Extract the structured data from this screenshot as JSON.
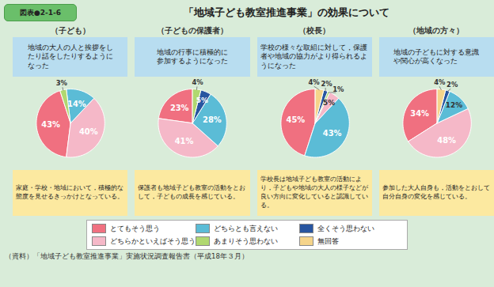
{
  "title": "「地域子ども教室推進事業」の効果について",
  "annotations": [
    "図表●2-1-6",
    "（資料）「地域子ども教室推進事業」実施状況調査報告書（平成18年３月）"
  ],
  "legend_items": [
    {
      "name": "とてもそう思う",
      "color": "#f07080"
    },
    {
      "name": "どちらとも言えない",
      "color": "#5bbcd6"
    },
    {
      "name": "全くそう思わない",
      "color": "#2855a0"
    },
    {
      "name": "どちらかといえばそう思う",
      "color": "#f5b8c8"
    },
    {
      "name": "あまりそう思わない",
      "color": "#b0d870"
    },
    {
      "name": "無回答",
      "color": "#f5d48a"
    }
  ],
  "chart_data": [
    {
      "type": "pie",
      "title": "（子ども）",
      "annotations": [
        "地域の大人の人と挨拶をし\nたり話をしたりするように\nなった",
        "家庭・学校・地域において，積極的な態度を見せるきっかけとなっている。"
      ],
      "values": [
        43,
        40,
        14,
        3
      ],
      "value_labels": [
        "43%",
        "40%",
        "14%",
        "3%"
      ],
      "colors": [
        "#f07080",
        "#f5b8c8",
        "#5bbcd6",
        "#b0d870"
      ],
      "data_labels": true
    },
    {
      "type": "pie",
      "title": "（子どもの保護者）",
      "annotations": [
        "地域の行事に積極的に\n参加するようになった",
        "保護者も地域子ども教室の活動をとおして，子どもの成長を感じている。"
      ],
      "values": [
        23,
        41,
        28,
        5,
        4
      ],
      "value_labels": [
        "23%",
        "41%",
        "28%",
        "5%",
        "4%"
      ],
      "colors": [
        "#f07080",
        "#f5b8c8",
        "#5bbcd6",
        "#2855a0",
        "#b0d870"
      ],
      "data_labels": true
    },
    {
      "type": "pie",
      "title": "（校長）",
      "annotations": [
        "学校の様々な取組に対して，保護者や地域の協力がより得られるようになった",
        "学校長は地域子ども教室の活動により，子どもや地域の大人の様子などが良い方向に変化していると認識している。"
      ],
      "values": [
        45,
        43,
        5,
        1,
        2,
        4
      ],
      "value_labels": [
        "45%",
        "43%",
        "5%",
        "1%",
        "2%",
        "4%"
      ],
      "colors": [
        "#f07080",
        "#5bbcd6",
        "#f5b8c8",
        "#b0d870",
        "#2855a0",
        "#f5d48a"
      ],
      "data_labels": true
    },
    {
      "type": "pie",
      "title": "（地域の方々）",
      "annotations": [
        "地域の子どもに対する意識\nや関心が高くなった",
        "参加した大人自身も，活動をとおして自分自身の変化を感じている。"
      ],
      "values": [
        34,
        48,
        12,
        2,
        4
      ],
      "value_labels": [
        "34%",
        "48%",
        "12%",
        "2%",
        "4%"
      ],
      "colors": [
        "#f07080",
        "#f5b8c8",
        "#5bbcd6",
        "#2855a0",
        "#f5d48a"
      ],
      "data_labels": true
    }
  ]
}
